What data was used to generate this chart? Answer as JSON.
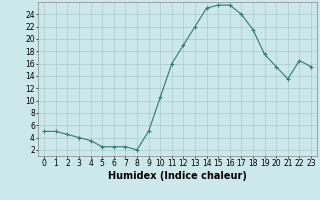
{
  "x": [
    0,
    1,
    2,
    3,
    4,
    5,
    6,
    7,
    8,
    9,
    10,
    11,
    12,
    13,
    14,
    15,
    16,
    17,
    18,
    19,
    20,
    21,
    22,
    23
  ],
  "y": [
    5,
    5,
    4.5,
    4,
    3.5,
    2.5,
    2.5,
    2.5,
    2,
    5,
    10.5,
    16,
    19,
    22,
    25,
    25.5,
    25.5,
    24,
    21.5,
    17.5,
    15.5,
    13.5,
    16.5,
    15.5
  ],
  "xlabel": "Humidex (Indice chaleur)",
  "xlim": [
    -0.5,
    23.5
  ],
  "ylim": [
    1,
    26
  ],
  "xticks": [
    0,
    1,
    2,
    3,
    4,
    5,
    6,
    7,
    8,
    9,
    10,
    11,
    12,
    13,
    14,
    15,
    16,
    17,
    18,
    19,
    20,
    21,
    22,
    23
  ],
  "yticks": [
    2,
    4,
    6,
    8,
    10,
    12,
    14,
    16,
    18,
    20,
    22,
    24
  ],
  "line_color": "#2e7d6e",
  "marker": "+",
  "bg_color": "#cce8ea",
  "grid_color": "#aacccc",
  "label_fontsize": 7,
  "tick_fontsize": 5.5
}
